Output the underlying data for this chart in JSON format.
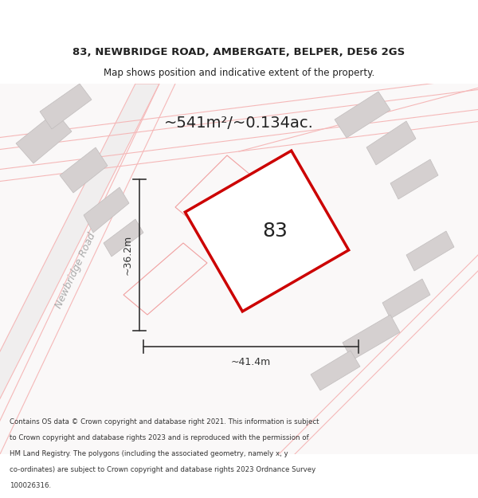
{
  "title_line1": "83, NEWBRIDGE ROAD, AMBERGATE, BELPER, DE56 2GS",
  "title_line2": "Map shows position and indicative extent of the property.",
  "area_label": "~541m²/~0.134ac.",
  "plot_number": "83",
  "width_label": "~41.4m",
  "height_label": "~36.2m",
  "road_label": "Newbridge Road",
  "footer_lines": [
    "Contains OS data © Crown copyright and database right 2021. This information is subject",
    "to Crown copyright and database rights 2023 and is reproduced with the permission of",
    "HM Land Registry. The polygons (including the associated geometry, namely x, y",
    "co-ordinates) are subject to Crown copyright and database rights 2023 Ordnance Survey",
    "100026316."
  ],
  "map_bg": "#ffffff",
  "plot_edge": "#cc0000",
  "road_line_color": "#f5b8b8",
  "dim_line_color": "#333333",
  "road_text_color": "#aaaaaa",
  "building_color": "#d5d0d0",
  "building_edge": "#c0bcbc"
}
